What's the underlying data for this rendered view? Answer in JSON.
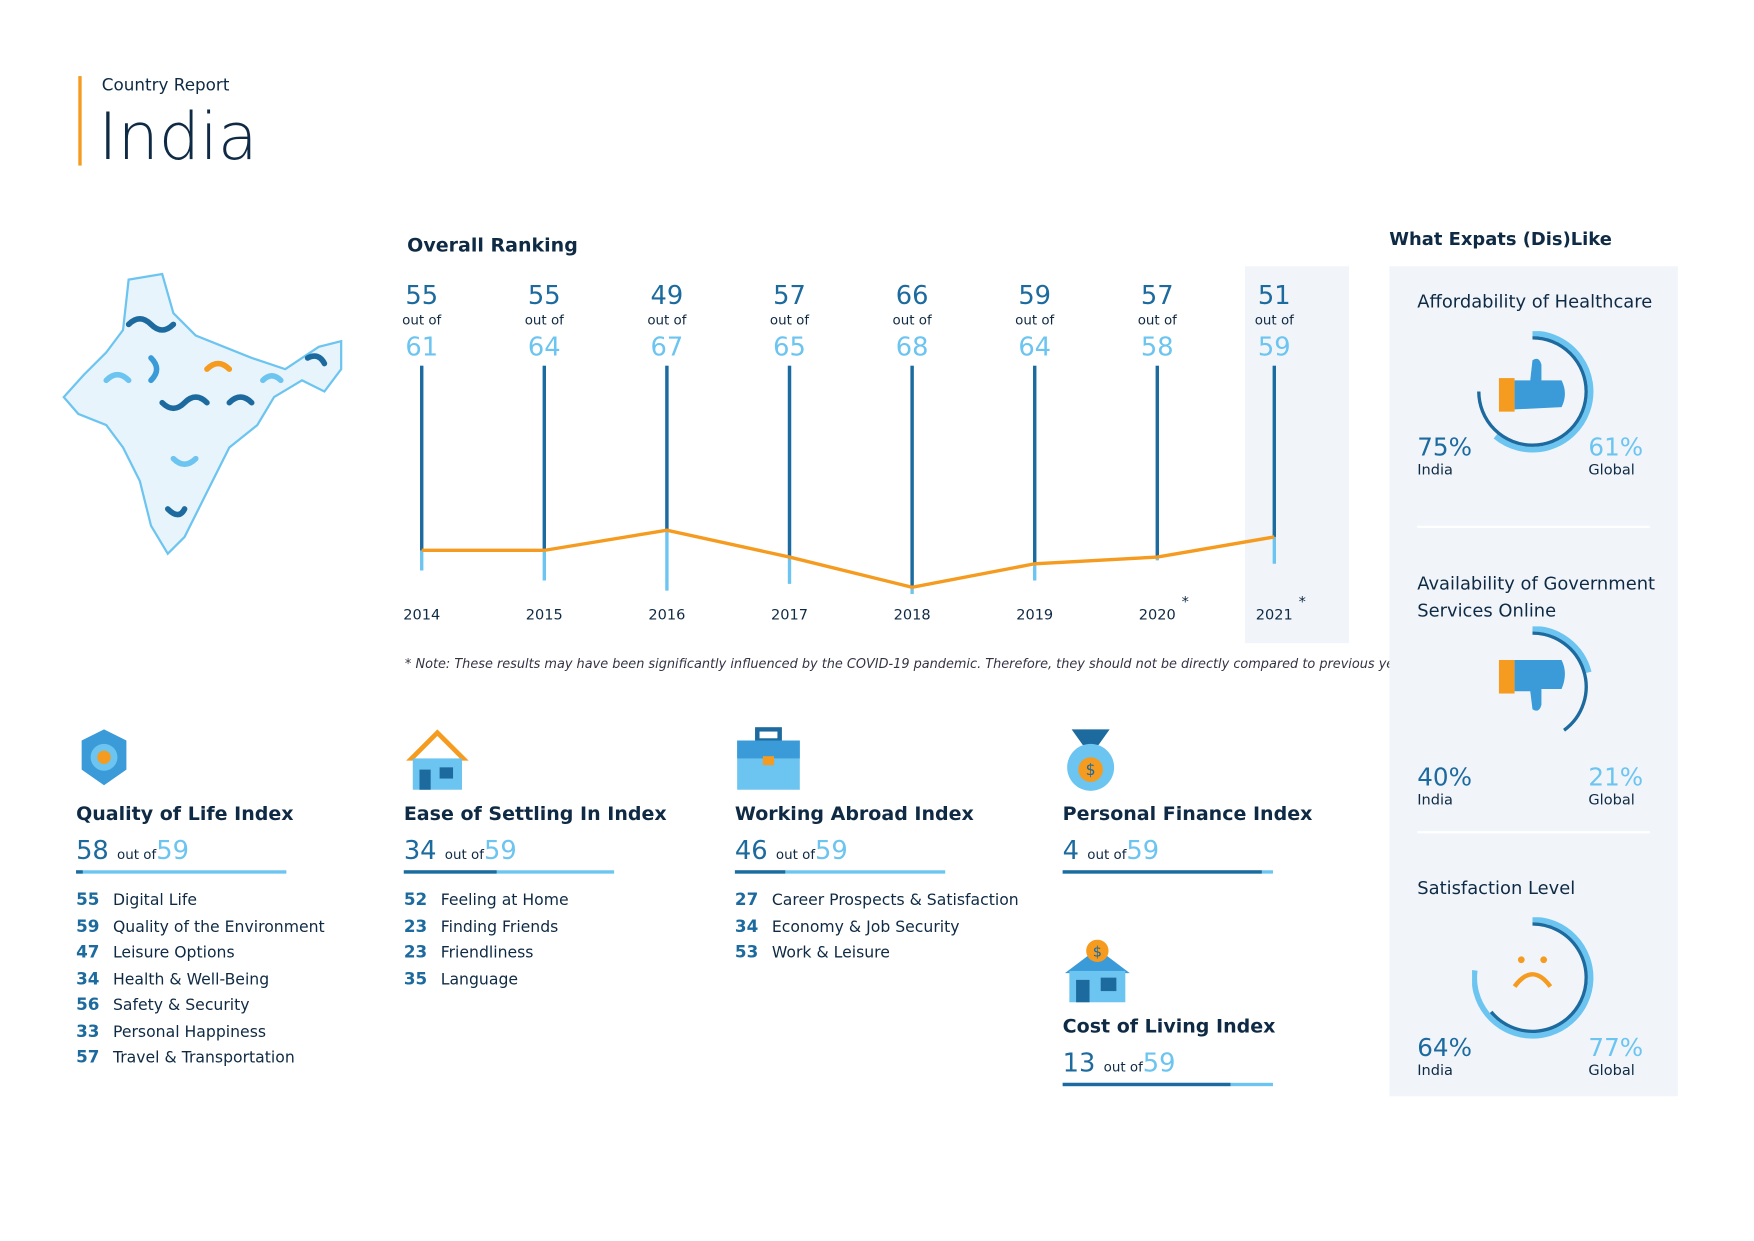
{
  "header": {
    "kicker": "Country Report",
    "title": "India"
  },
  "chart_data": {
    "type": "line",
    "title": "Overall Ranking",
    "categories": [
      "2014",
      "2015",
      "2016",
      "2017",
      "2018",
      "2019",
      "2020",
      "2021"
    ],
    "rank": [
      55,
      55,
      49,
      57,
      66,
      59,
      57,
      51
    ],
    "total": [
      61,
      64,
      67,
      65,
      68,
      64,
      58,
      59
    ],
    "out_of_label": "out of",
    "asterisk_years": [
      "2020",
      "2021"
    ],
    "highlight": "2021",
    "note": "* Note: These results may have been significantly influenced by the COVID-19 pandemic. Therefore, they should not be directly compared to previous years."
  },
  "colors": {
    "dark": "#1c6a9e",
    "light": "#6cc4f0",
    "orange": "#f59b1f",
    "panel": "#f1f5fa"
  },
  "indices": [
    {
      "title": "Quality of Life Index",
      "rank": "58",
      "out_of": "out of",
      "total": "59",
      "items": [
        [
          "55",
          "Digital Life"
        ],
        [
          "59",
          "Quality of the Environment"
        ],
        [
          "47",
          "Leisure Options"
        ],
        [
          "34",
          "Health & Well-Being"
        ],
        [
          "56",
          "Safety & Security"
        ],
        [
          "33",
          "Personal Happiness"
        ],
        [
          "57",
          "Travel & Transportation"
        ]
      ]
    },
    {
      "title": "Ease of Settling In Index",
      "rank": "34",
      "out_of": "out of",
      "total": "59",
      "items": [
        [
          "52",
          "Feeling at Home"
        ],
        [
          "23",
          "Finding Friends"
        ],
        [
          "23",
          "Friendliness"
        ],
        [
          "35",
          "Language"
        ]
      ]
    },
    {
      "title": "Working Abroad Index",
      "rank": "46",
      "out_of": "out of",
      "total": "59",
      "items": [
        [
          "27",
          "Career Prospects & Satisfaction"
        ],
        [
          "34",
          "Economy & Job Security"
        ],
        [
          "53",
          "Work & Leisure"
        ]
      ]
    },
    {
      "title": "Personal Finance Index",
      "rank": "4",
      "out_of": "out of",
      "total": "59",
      "items": []
    },
    {
      "title": "Cost of Living Index",
      "rank": "13",
      "out_of": "out of",
      "total": "59",
      "items": []
    }
  ],
  "likes": {
    "title": "What Expats (Dis)Like",
    "cards": [
      {
        "title": "Affordability of Healthcare",
        "icon": "thumbs-up",
        "india": "75%",
        "global": "61%",
        "india_label": "India",
        "global_label": "Global"
      },
      {
        "title": "Availability of Government Services Online",
        "icon": "thumbs-down",
        "india": "40%",
        "global": "21%",
        "india_label": "India",
        "global_label": "Global"
      },
      {
        "title": "Satisfaction Level",
        "icon": "sad-face",
        "india": "64%",
        "global": "77%",
        "india_label": "India",
        "global_label": "Global"
      }
    ]
  }
}
